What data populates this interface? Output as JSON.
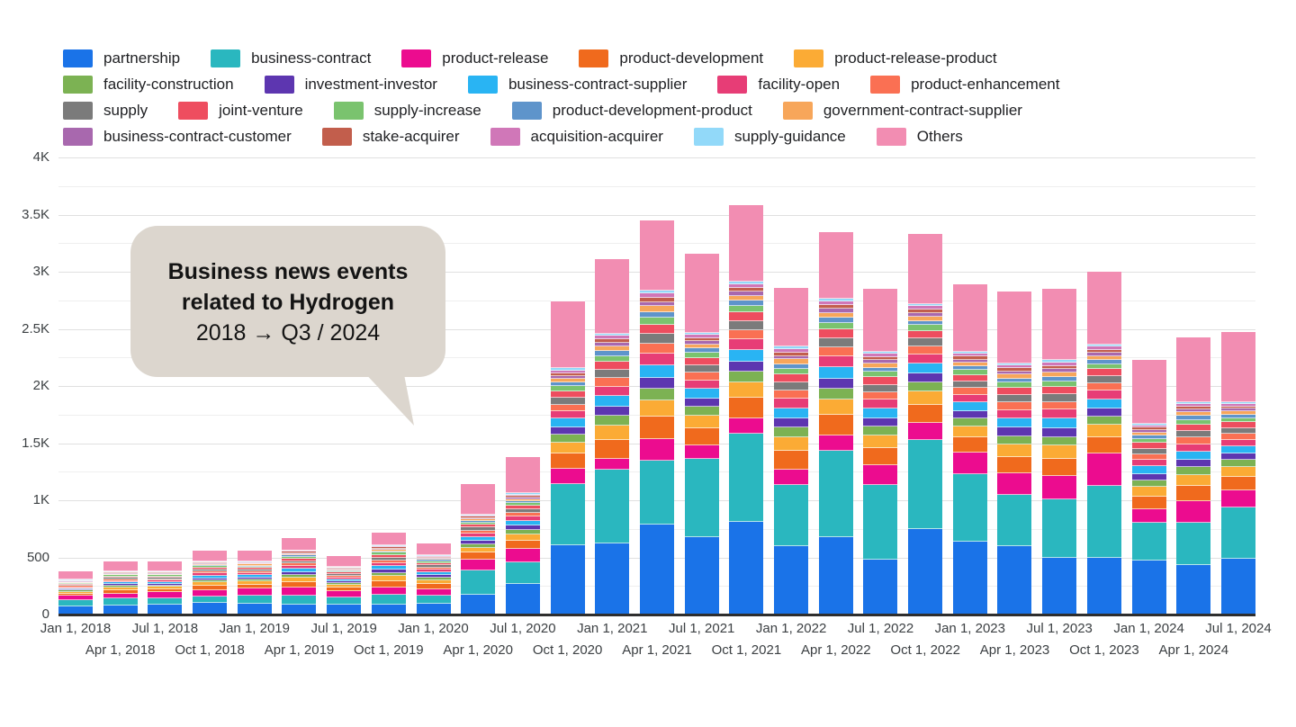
{
  "page": {
    "background": "#ffffff"
  },
  "annotation": {
    "line1": "Business news events",
    "line2": "related to Hydrogen",
    "line3": "2018 → Q3 / 2024",
    "bubble_color": "#dcd6ce",
    "text_color": "#141414"
  },
  "chart_data": {
    "type": "bar",
    "subtype": "stacked-vertical",
    "title": "Business news events related to Hydrogen 2018 → Q3 / 2024",
    "xlabel": "",
    "ylabel": "",
    "grid": true,
    "legend_position": "top",
    "y_axis": {
      "min": 0,
      "max": 4000,
      "major_step": 500,
      "minor_step": 250,
      "tick_values": [
        0,
        500,
        1000,
        1500,
        2000,
        2500,
        3000,
        3500,
        4000
      ],
      "tick_labels": [
        "0",
        "500",
        "1K",
        "1.5K",
        "2K",
        "2.5K",
        "3K",
        "3.5K",
        "4K"
      ]
    },
    "x_categories": [
      "Jan 1, 2018",
      "Apr 1, 2018",
      "Jul 1, 2018",
      "Oct 1, 2018",
      "Jan 1, 2019",
      "Apr 1, 2019",
      "Jul 1, 2019",
      "Oct 1, 2019",
      "Jan 1, 2020",
      "Apr 1, 2020",
      "Jul 1, 2020",
      "Oct 1, 2020",
      "Jan 1, 2021",
      "Apr 1, 2021",
      "Jul 1, 2021",
      "Oct 1, 2021",
      "Jan 1, 2022",
      "Apr 1, 2022",
      "Jul 1, 2022",
      "Oct 1, 2022",
      "Jan 1, 2023",
      "Apr 1, 2023",
      "Jul 1, 2023",
      "Oct 1, 2023",
      "Jan 1, 2024",
      "Apr 1, 2024",
      "Jul 1, 2024"
    ],
    "totals_approx": [
      380,
      465,
      465,
      560,
      560,
      675,
      510,
      715,
      625,
      1140,
      1380,
      2740,
      3110,
      3450,
      3160,
      3580,
      2860,
      3350,
      2850,
      3330,
      2890,
      2830,
      2850,
      3000,
      2230,
      2430,
      2470
    ],
    "series": [
      {
        "name": "partnership",
        "color": "#1a73e8",
        "values": [
          70,
          80,
          90,
          100,
          95,
          90,
          85,
          90,
          95,
          170,
          265,
          610,
          620,
          790,
          680,
          810,
          600,
          680,
          480,
          745,
          640,
          600,
          500,
          500,
          470,
          430,
          490
        ]
      },
      {
        "name": "business-contract",
        "color": "#2ab7bf",
        "values": [
          55,
          60,
          55,
          60,
          70,
          75,
          65,
          80,
          70,
          215,
          195,
          535,
          650,
          560,
          680,
          770,
          535,
          750,
          655,
          785,
          590,
          450,
          510,
          630,
          330,
          375,
          450
        ]
      },
      {
        "name": "product-release",
        "color": "#ec0c8f",
        "values": [
          40,
          45,
          50,
          55,
          60,
          70,
          55,
          70,
          55,
          95,
          115,
          130,
          95,
          185,
          120,
          135,
          135,
          135,
          170,
          145,
          185,
          185,
          200,
          280,
          120,
          190,
          150
        ]
      },
      {
        "name": "product-development",
        "color": "#f06a1d",
        "values": [
          20,
          30,
          27,
          38,
          36,
          50,
          32,
          55,
          45,
          60,
          73,
          133,
          165,
          196,
          149,
          181,
          162,
          181,
          151,
          158,
          134,
          146,
          153,
          143,
          113,
          131,
          116
        ]
      },
      {
        "name": "product-release-product",
        "color": "#fbab35",
        "values": [
          15,
          20,
          20,
          28,
          27,
          37,
          24,
          41,
          34,
          45,
          55,
          100,
          124,
          147,
          112,
          136,
          122,
          136,
          113,
          118,
          100,
          109,
          115,
          108,
          85,
          98,
          87
        ]
      },
      {
        "name": "facility-construction",
        "color": "#7cb253",
        "values": [
          10,
          15,
          14,
          19,
          18,
          25,
          16,
          28,
          23,
          30,
          37,
          66,
          83,
          98,
          75,
          91,
          81,
          91,
          75,
          79,
          67,
          73,
          77,
          72,
          57,
          65,
          58
        ]
      },
      {
        "name": "investment-investor",
        "color": "#5d36b0",
        "values": [
          10,
          15,
          14,
          19,
          18,
          25,
          16,
          28,
          23,
          30,
          37,
          66,
          83,
          98,
          75,
          91,
          81,
          91,
          75,
          79,
          67,
          73,
          77,
          72,
          57,
          65,
          58
        ]
      },
      {
        "name": "business-contract-supplier",
        "color": "#29b4f3",
        "values": [
          10,
          15,
          15,
          21,
          20,
          28,
          18,
          31,
          25,
          34,
          41,
          75,
          93,
          110,
          84,
          102,
          91,
          102,
          85,
          89,
          75,
          82,
          86,
          81,
          64,
          73,
          65
        ]
      },
      {
        "name": "facility-open",
        "color": "#e73d76",
        "values": [
          10,
          15,
          14,
          19,
          18,
          25,
          16,
          28,
          23,
          30,
          37,
          66,
          83,
          98,
          75,
          91,
          81,
          91,
          75,
          79,
          67,
          73,
          77,
          72,
          57,
          65,
          58
        ]
      },
      {
        "name": "product-enhancement",
        "color": "#fa7053",
        "values": [
          10,
          13,
          12,
          17,
          16,
          22,
          14,
          24,
          20,
          26,
          32,
          58,
          72,
          86,
          65,
          79,
          71,
          79,
          66,
          69,
          58,
          64,
          67,
          63,
          50,
          57,
          51
        ]
      },
      {
        "name": "supply",
        "color": "#7b7b7b",
        "values": [
          10,
          13,
          12,
          17,
          16,
          22,
          14,
          24,
          20,
          26,
          32,
          58,
          72,
          86,
          65,
          79,
          71,
          79,
          66,
          69,
          58,
          64,
          67,
          63,
          50,
          57,
          51
        ]
      },
      {
        "name": "joint-venture",
        "color": "#ee4d5f",
        "values": [
          10,
          13,
          12,
          17,
          16,
          22,
          14,
          24,
          20,
          26,
          32,
          58,
          72,
          86,
          65,
          79,
          71,
          79,
          66,
          69,
          58,
          64,
          67,
          63,
          50,
          57,
          51
        ]
      },
      {
        "name": "supply-increase",
        "color": "#7ac36e",
        "values": [
          5,
          10,
          9,
          12,
          11,
          16,
          10,
          17,
          14,
          19,
          23,
          42,
          52,
          61,
          47,
          57,
          51,
          57,
          47,
          49,
          42,
          46,
          48,
          45,
          35,
          41,
          36
        ]
      },
      {
        "name": "product-development-product",
        "color": "#5e94cb",
        "values": [
          5,
          7,
          7,
          9,
          9,
          12,
          8,
          14,
          11,
          15,
          18,
          33,
          41,
          49,
          37,
          45,
          41,
          45,
          38,
          39,
          33,
          36,
          38,
          36,
          28,
          33,
          29
        ]
      },
      {
        "name": "government-contract-supplier",
        "color": "#f7a65a",
        "values": [
          5,
          7,
          7,
          9,
          9,
          12,
          8,
          14,
          11,
          15,
          18,
          33,
          41,
          49,
          37,
          45,
          41,
          45,
          38,
          39,
          33,
          36,
          38,
          36,
          28,
          33,
          29
        ]
      },
      {
        "name": "business-contract-customer",
        "color": "#a868ae",
        "values": [
          5,
          5,
          5,
          7,
          7,
          9,
          6,
          10,
          8,
          11,
          14,
          25,
          31,
          37,
          28,
          34,
          30,
          34,
          28,
          30,
          25,
          27,
          29,
          27,
          21,
          24,
          22
        ]
      },
      {
        "name": "stake-acquirer",
        "color": "#c25e4c",
        "values": [
          5,
          5,
          5,
          7,
          7,
          9,
          6,
          10,
          8,
          11,
          14,
          25,
          31,
          37,
          28,
          34,
          30,
          34,
          28,
          30,
          25,
          27,
          29,
          27,
          21,
          24,
          22
        ]
      },
      {
        "name": "acquisition-acquirer",
        "color": "#d077b8",
        "values": [
          5,
          5,
          5,
          7,
          7,
          9,
          6,
          10,
          8,
          11,
          14,
          25,
          31,
          37,
          28,
          34,
          30,
          34,
          28,
          30,
          25,
          27,
          29,
          27,
          21,
          24,
          22
        ]
      },
      {
        "name": "supply-guidance",
        "color": "#92d9f9",
        "values": [
          5,
          5,
          3,
          5,
          4,
          6,
          4,
          7,
          6,
          7,
          9,
          17,
          21,
          25,
          19,
          23,
          20,
          23,
          19,
          20,
          17,
          18,
          19,
          18,
          14,
          16,
          15
        ]
      },
      {
        "name": "Others",
        "color": "#f28db2",
        "values": [
          75,
          85,
          90,
          95,
          100,
          110,
          95,
          110,
          105,
          265,
          320,
          585,
          650,
          615,
          690,
          665,
          515,
          585,
          545,
          610,
          590,
          630,
          625,
          640,
          560,
          570,
          610
        ]
      }
    ]
  }
}
